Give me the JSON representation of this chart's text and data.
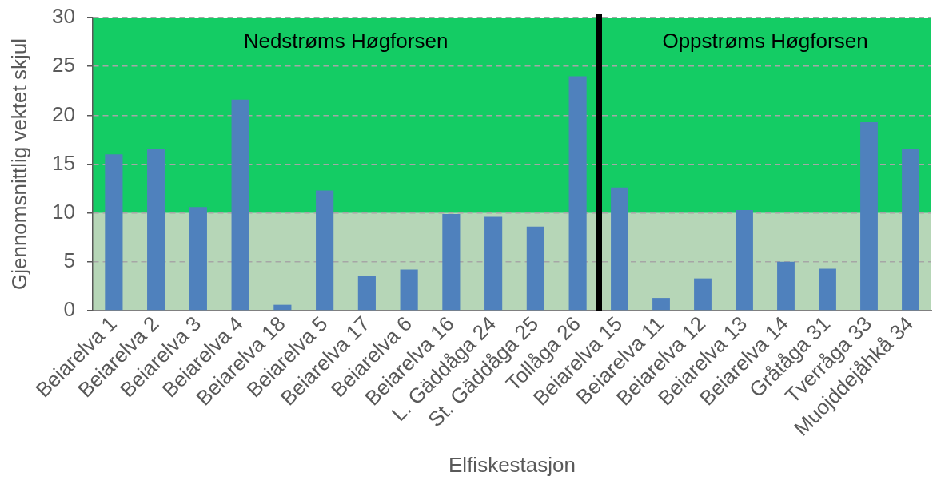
{
  "chart_data": [
    {
      "type": "bar",
      "xlabel": "Elfiskestasjon",
      "ylabel": "Gjennomsnittlig vektet skjul",
      "categories": [
        "Beiarelva 1",
        "Beiarelva 2",
        "Beiarelva 3",
        "Beiarelva 4",
        "Beiarelva 18",
        "Beiarelva 5",
        "Beiarelva 17",
        "Beiarelva 6",
        "Beiarelva 16",
        "L. Gäddåga 24",
        "St. Gäddåga 25",
        "Tollåga 26"
      ],
      "values": [
        16.0,
        16.6,
        10.6,
        21.6,
        0.6,
        12.3,
        3.6,
        4.2,
        9.9,
        9.6,
        8.6,
        24.0
      ],
      "color": "#4f81bd",
      "ylim": [
        0,
        30
      ],
      "yticks": [
        0,
        5,
        10,
        15,
        20,
        25,
        30
      ],
      "grid": "y",
      "legend": false,
      "bands": [
        {
          "axis": "y",
          "from": 10,
          "to": 30,
          "color": "#14cc64"
        },
        {
          "axis": "y",
          "from": 0,
          "to": 10,
          "color": "#b6d6b7"
        }
      ],
      "annotations": [
        "Nedstrøms Høgforsen"
      ]
    },
    {
      "type": "bar",
      "categories": [
        "Beiarelva 15",
        "Beiarelva 11",
        "Beiarelva 12",
        "Beiarelva 13",
        "Beiarelva 14",
        "Gråtåga 31",
        "Tverråga 33",
        "Muojddejåhkå 34"
      ],
      "values": [
        12.6,
        1.3,
        3.3,
        10.3,
        5.0,
        4.3,
        19.3,
        16.6
      ],
      "color": "#4f81bd",
      "ylim": [
        0,
        30
      ],
      "yticks": [
        0,
        5,
        10,
        15,
        20,
        25,
        30
      ],
      "grid": "y",
      "legend": false,
      "tick_labels": "x",
      "bands": [
        {
          "axis": "y",
          "from": 10,
          "to": 30,
          "color": "#14cc64"
        },
        {
          "axis": "y",
          "from": 0,
          "to": 10,
          "color": "#b6d6b7"
        }
      ],
      "annotations": [
        "Oppstrøms Høgforsen"
      ]
    }
  ]
}
